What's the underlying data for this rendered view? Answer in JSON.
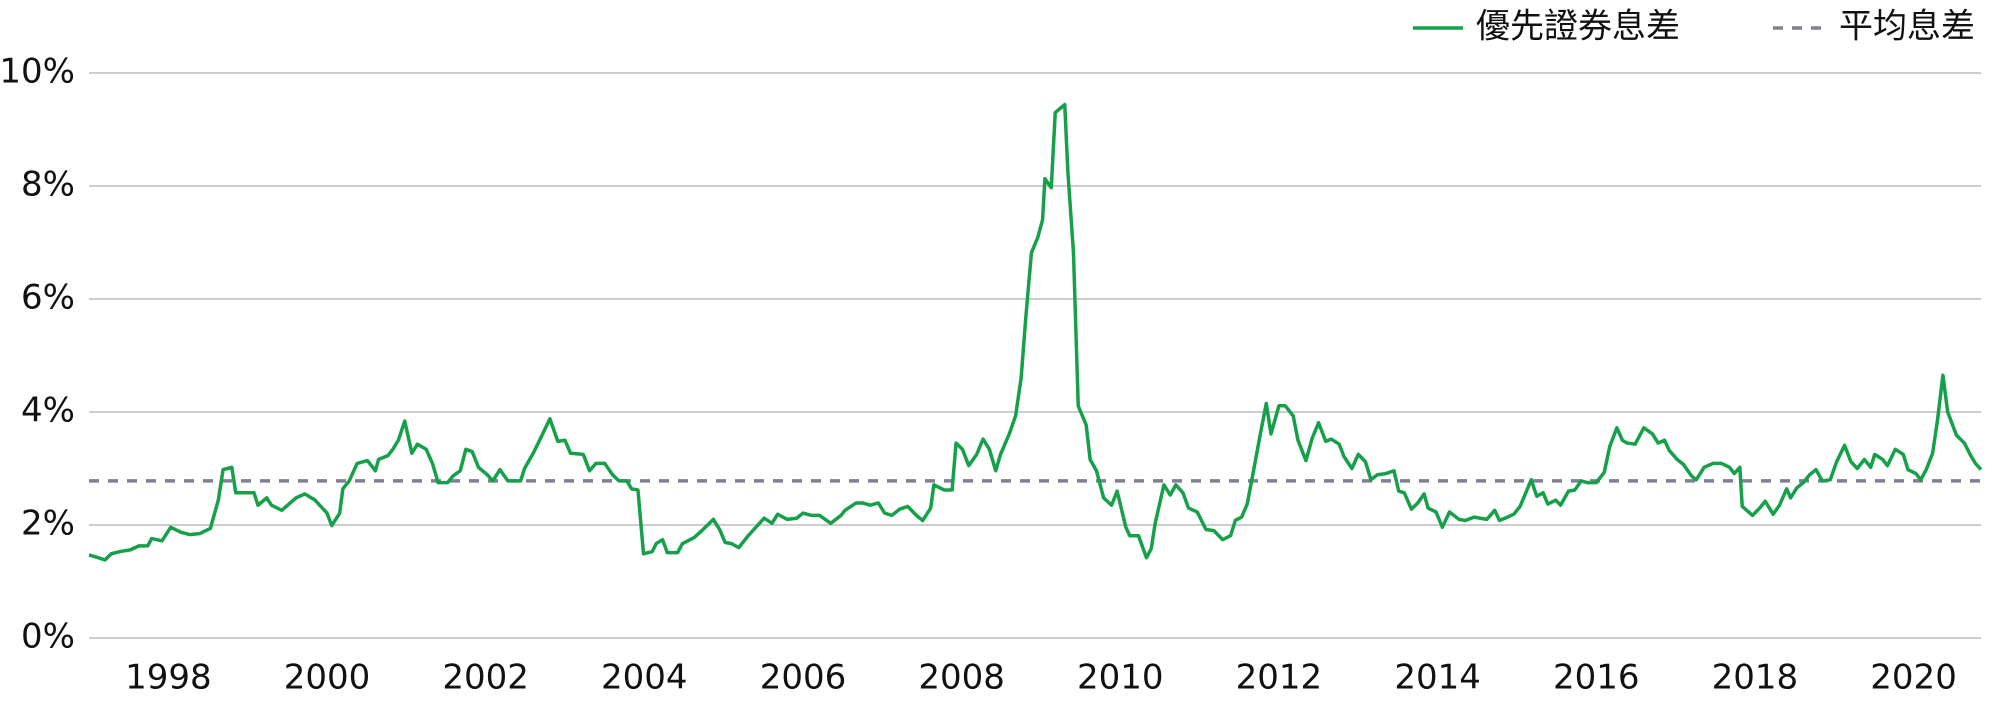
{
  "chart_data": {
    "type": "line",
    "xlim": [
      1997,
      2020.85
    ],
    "xticks": [
      1998,
      2000,
      2002,
      2004,
      2006,
      2008,
      2010,
      2012,
      2014,
      2016,
      2018,
      2020
    ],
    "ylim": [
      0,
      10
    ],
    "yticks": [
      {
        "value": 0,
        "label": "0%"
      },
      {
        "value": 2,
        "label": "2%"
      },
      {
        "value": 4,
        "label": "4%"
      },
      {
        "value": 6,
        "label": "6%"
      },
      {
        "value": 8,
        "label": "8%"
      },
      {
        "value": 10,
        "label": "10%"
      }
    ],
    "grid": true,
    "legend": "top-right",
    "series": [
      {
        "name": "優先證券息差",
        "color": "#16a04a",
        "style": "solid",
        "x": [
          1997.0,
          1997.12,
          1997.2,
          1997.28,
          1997.39,
          1997.52,
          1997.63,
          1997.74,
          1997.79,
          1997.92,
          1998.03,
          1998.16,
          1998.27,
          1998.4,
          1998.53,
          1998.63,
          1998.69,
          1998.8,
          1998.85,
          1999.08,
          1999.13,
          1999.24,
          1999.3,
          1999.43,
          1999.61,
          1999.72,
          1999.85,
          2000.0,
          2000.06,
          2000.16,
          2000.2,
          2000.28,
          2000.38,
          2000.51,
          2000.61,
          2000.65,
          2000.77,
          2000.83,
          2000.9,
          2000.98,
          2001.07,
          2001.14,
          2001.25,
          2001.33,
          2001.4,
          2001.52,
          2001.59,
          2001.68,
          2001.75,
          2001.83,
          2001.91,
          2002.02,
          2002.09,
          2002.18,
          2002.28,
          2002.44,
          2002.49,
          2002.6,
          2002.68,
          2002.81,
          2002.91,
          2003.0,
          2003.07,
          2003.23,
          2003.31,
          2003.39,
          2003.5,
          2003.6,
          2003.68,
          2003.78,
          2003.84,
          2003.92,
          2003.99,
          2004.1,
          2004.15,
          2004.23,
          2004.29,
          2004.42,
          2004.48,
          2004.63,
          2004.74,
          2004.87,
          2004.95,
          2005.02,
          2005.1,
          2005.19,
          2005.31,
          2005.51,
          2005.61,
          2005.68,
          2005.8,
          2005.92,
          2006.0,
          2006.11,
          2006.21,
          2006.35,
          2006.48,
          2006.53,
          2006.67,
          2006.75,
          2006.85,
          2006.95,
          2007.03,
          2007.12,
          2007.22,
          2007.32,
          2007.43,
          2007.51,
          2007.61,
          2007.65,
          2007.78,
          2007.88,
          2007.93,
          2008.01,
          2008.09,
          2008.19,
          2008.27,
          2008.35,
          2008.43,
          2008.49,
          2008.6,
          2008.68,
          2008.75,
          2008.81,
          2008.88,
          2008.96,
          2009.02,
          2009.05,
          2009.13,
          2009.18,
          2009.3,
          2009.34,
          2009.41,
          2009.47,
          2009.57,
          2009.62,
          2009.7,
          2009.79,
          2009.89,
          2009.96,
          2010.07,
          2010.12,
          2010.23,
          2010.33,
          2010.39,
          2010.44,
          2010.55,
          2010.63,
          2010.7,
          2010.79,
          2010.86,
          2010.97,
          2011.08,
          2011.18,
          2011.29,
          2011.39,
          2011.45,
          2011.53,
          2011.6,
          2011.68,
          2011.76,
          2011.84,
          2011.9,
          2012.0,
          2012.08,
          2012.18,
          2012.24,
          2012.34,
          2012.42,
          2012.5,
          2012.59,
          2012.66,
          2012.76,
          2012.82,
          2012.92,
          2013.0,
          2013.09,
          2013.16,
          2013.24,
          2013.35,
          2013.45,
          2013.51,
          2013.58,
          2013.67,
          2013.75,
          2013.83,
          2013.88,
          2013.98,
          2014.06,
          2014.15,
          2014.27,
          2014.35,
          2014.46,
          2014.54,
          2014.62,
          2014.72,
          2014.78,
          2014.88,
          2014.96,
          2015.04,
          2015.1,
          2015.18,
          2015.25,
          2015.33,
          2015.39,
          2015.49,
          2015.55,
          2015.65,
          2015.73,
          2015.81,
          2015.89,
          2016.0,
          2016.1,
          2016.17,
          2016.26,
          2016.33,
          2016.39,
          2016.49,
          2016.6,
          2016.71,
          2016.78,
          2016.86,
          2016.92,
          2017.02,
          2017.1,
          2017.2,
          2017.26,
          2017.36,
          2017.47,
          2017.58,
          2017.68,
          2017.74,
          2017.81,
          2017.84,
          2017.97,
          2018.06,
          2018.13,
          2018.23,
          2018.31,
          2018.4,
          2018.45,
          2018.53,
          2018.61,
          2018.69,
          2018.77,
          2018.85,
          2018.95,
          2019.03,
          2019.13,
          2019.21,
          2019.29,
          2019.38,
          2019.46,
          2019.51,
          2019.61,
          2019.67,
          2019.77,
          2019.87,
          2019.93,
          2020.03,
          2020.09,
          2020.16,
          2020.24,
          2020.3,
          2020.37,
          2020.43,
          2020.54,
          2020.64,
          2020.72,
          2020.78,
          2020.85
        ],
        "values": [
          1.47,
          1.42,
          1.38,
          1.49,
          1.53,
          1.56,
          1.63,
          1.63,
          1.76,
          1.72,
          1.96,
          1.87,
          1.83,
          1.85,
          1.94,
          2.44,
          2.98,
          3.02,
          2.57,
          2.57,
          2.35,
          2.48,
          2.35,
          2.26,
          2.48,
          2.55,
          2.44,
          2.21,
          1.99,
          2.21,
          2.64,
          2.78,
          3.09,
          3.14,
          2.96,
          3.16,
          3.23,
          3.34,
          3.5,
          3.84,
          3.27,
          3.43,
          3.34,
          3.09,
          2.75,
          2.75,
          2.87,
          2.96,
          3.34,
          3.3,
          3.02,
          2.89,
          2.78,
          2.98,
          2.78,
          2.78,
          3.0,
          3.27,
          3.5,
          3.88,
          3.48,
          3.5,
          3.27,
          3.25,
          2.96,
          3.09,
          3.09,
          2.89,
          2.78,
          2.78,
          2.64,
          2.62,
          1.49,
          1.53,
          1.67,
          1.74,
          1.51,
          1.51,
          1.67,
          1.78,
          1.92,
          2.1,
          1.92,
          1.69,
          1.67,
          1.6,
          1.81,
          2.12,
          2.03,
          2.19,
          2.1,
          2.12,
          2.21,
          2.17,
          2.17,
          2.03,
          2.17,
          2.26,
          2.39,
          2.39,
          2.35,
          2.39,
          2.21,
          2.17,
          2.28,
          2.33,
          2.17,
          2.08,
          2.3,
          2.71,
          2.62,
          2.62,
          3.45,
          3.34,
          3.05,
          3.25,
          3.52,
          3.34,
          2.96,
          3.25,
          3.61,
          3.93,
          4.6,
          5.69,
          6.82,
          7.09,
          7.4,
          8.13,
          7.97,
          9.3,
          9.44,
          8.24,
          6.82,
          4.11,
          3.77,
          3.16,
          2.96,
          2.48,
          2.35,
          2.6,
          1.96,
          1.81,
          1.81,
          1.42,
          1.58,
          2.03,
          2.71,
          2.53,
          2.71,
          2.57,
          2.3,
          2.23,
          1.92,
          1.9,
          1.74,
          1.81,
          2.08,
          2.14,
          2.37,
          2.96,
          3.57,
          4.15,
          3.61,
          4.11,
          4.11,
          3.93,
          3.5,
          3.14,
          3.54,
          3.81,
          3.48,
          3.52,
          3.43,
          3.21,
          3.0,
          3.25,
          3.12,
          2.8,
          2.89,
          2.91,
          2.96,
          2.6,
          2.57,
          2.28,
          2.39,
          2.55,
          2.3,
          2.23,
          1.96,
          2.23,
          2.1,
          2.08,
          2.14,
          2.12,
          2.1,
          2.26,
          2.08,
          2.14,
          2.19,
          2.33,
          2.53,
          2.8,
          2.51,
          2.57,
          2.37,
          2.44,
          2.35,
          2.6,
          2.62,
          2.78,
          2.75,
          2.75,
          2.93,
          3.39,
          3.72,
          3.5,
          3.45,
          3.43,
          3.72,
          3.61,
          3.45,
          3.5,
          3.32,
          3.16,
          3.07,
          2.87,
          2.8,
          3.02,
          3.09,
          3.09,
          3.02,
          2.91,
          3.02,
          2.33,
          2.17,
          2.3,
          2.42,
          2.19,
          2.35,
          2.64,
          2.48,
          2.66,
          2.75,
          2.89,
          2.98,
          2.78,
          2.8,
          3.12,
          3.41,
          3.12,
          3.0,
          3.16,
          3.02,
          3.25,
          3.16,
          3.05,
          3.34,
          3.25,
          2.98,
          2.91,
          2.8,
          2.98,
          3.27,
          3.84,
          4.65,
          4.0,
          3.59,
          3.45,
          3.23,
          3.09,
          2.98
        ]
      },
      {
        "name": "平均息差",
        "color": "#7f7f95",
        "style": "dashed",
        "x": [
          1997,
          2020.85
        ],
        "values": [
          2.78,
          2.78
        ]
      }
    ]
  }
}
